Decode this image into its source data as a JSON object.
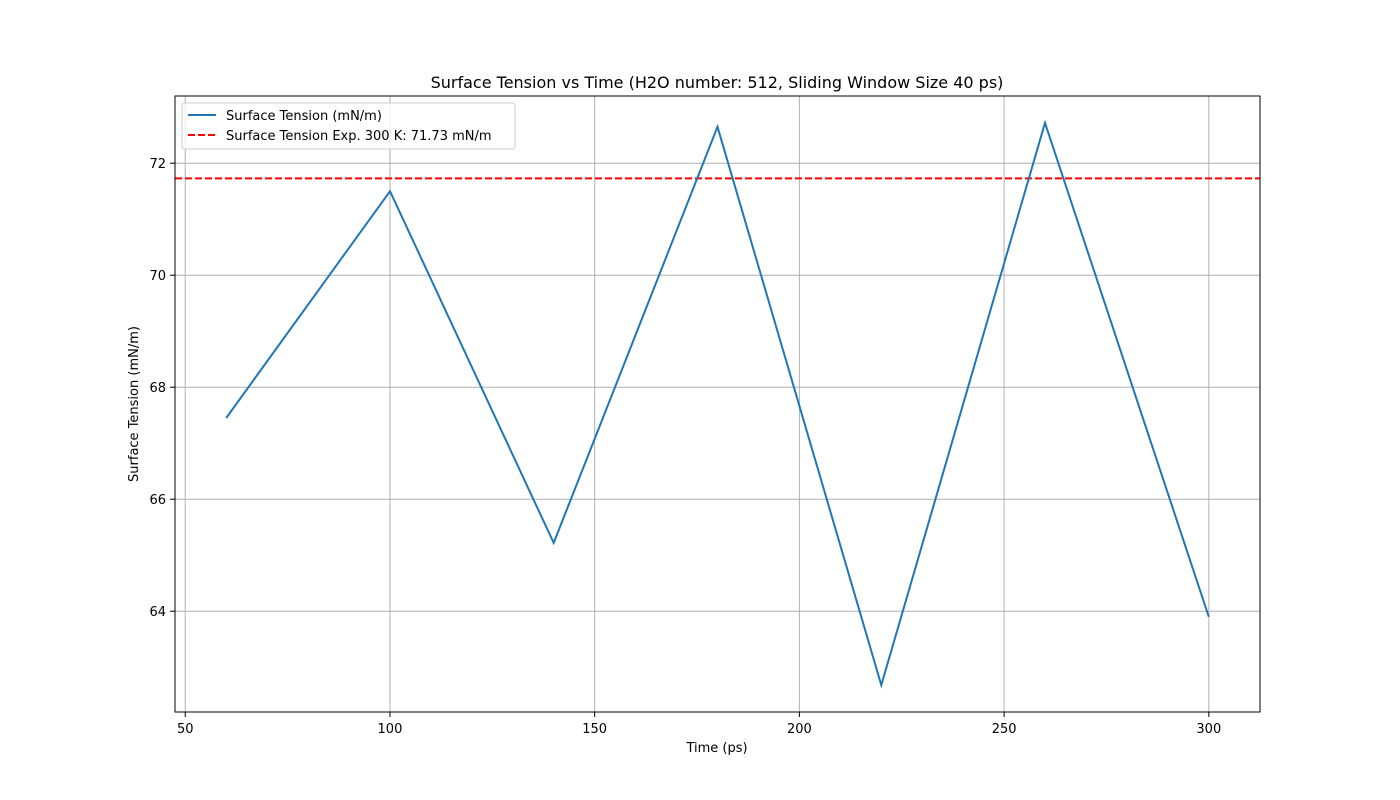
{
  "chart_data": {
    "type": "line",
    "title": "Surface Tension vs Time (H2O number: 512, Sliding Window Size 40 ps)",
    "xlabel": "Time (ps)",
    "ylabel": "Surface Tension (mN/m)",
    "xlim": [
      47.5,
      312.5
    ],
    "ylim": [
      62.2,
      73.2
    ],
    "xticks": [
      50,
      100,
      150,
      200,
      250,
      300
    ],
    "yticks": [
      64,
      66,
      68,
      70,
      72
    ],
    "grid": true,
    "legend_position": "upper-left",
    "series": [
      {
        "name": "Surface Tension (mN/m)",
        "color": "#1f77b4",
        "style": "solid",
        "x": [
          60,
          100,
          140,
          180,
          220,
          260,
          300
        ],
        "y": [
          67.45,
          71.5,
          65.22,
          72.65,
          62.68,
          72.72,
          63.9
        ]
      }
    ],
    "reference_lines": [
      {
        "name": "Surface Tension Exp. 300 K: 71.73 mN/m",
        "color": "#ff0000",
        "style": "dashed",
        "y": 71.73
      }
    ]
  }
}
